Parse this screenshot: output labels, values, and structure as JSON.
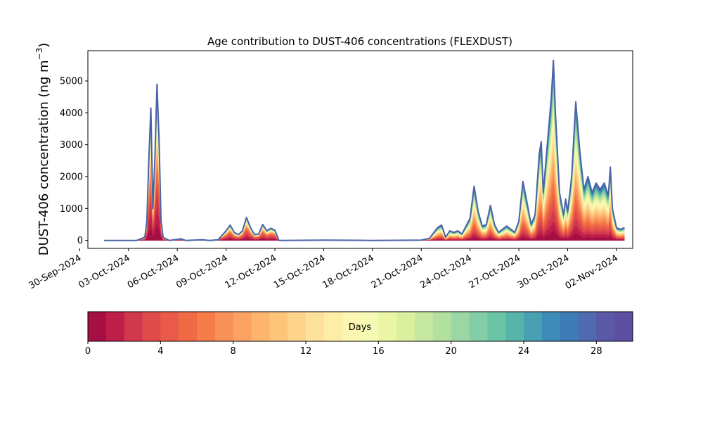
{
  "chart_data": {
    "type": "area",
    "title": "Age contribution to DUST-406 concentrations (FLEXDUST)",
    "ylabel": "DUST-406 concentration (ng m",
    "ylabel_superscript": "−3",
    "ylabel_close": ")",
    "xlabel": "",
    "ylim": [
      -250,
      5950
    ],
    "xlim": [
      "2024-09-30T12:00",
      "2024-11-03T00:00"
    ],
    "y_ticks": [
      0,
      1000,
      2000,
      3000,
      4000,
      5000
    ],
    "x_ticks": [
      "30-Sep-2024",
      "03-Oct-2024",
      "06-Oct-2024",
      "09-Oct-2024",
      "12-Oct-2024",
      "15-Oct-2024",
      "18-Oct-2024",
      "21-Oct-2024",
      "24-Oct-2024",
      "27-Oct-2024",
      "30-Oct-2024",
      "02-Nov-2024"
    ],
    "x_tick_dates": [
      "2024-09-30",
      "2024-10-03",
      "2024-10-06",
      "2024-10-09",
      "2024-10-12",
      "2024-10-15",
      "2024-10-18",
      "2024-10-21",
      "2024-10-24",
      "2024-10-27",
      "2024-10-30",
      "2024-11-02"
    ],
    "grid": false,
    "total_line_color": "#4a62a8",
    "total_concentration": [
      [
        "2024-10-01T12:00",
        0
      ],
      [
        "2024-10-02T12:00",
        0
      ],
      [
        "2024-10-03T12:00",
        0
      ],
      [
        "2024-10-04T00:00",
        100
      ],
      [
        "2024-10-04T03:00",
        600
      ],
      [
        "2024-10-04T06:00",
        2600
      ],
      [
        "2024-10-04T09:00",
        4150
      ],
      [
        "2024-10-04T12:00",
        1000
      ],
      [
        "2024-10-04T15:00",
        2600
      ],
      [
        "2024-10-04T18:00",
        4900
      ],
      [
        "2024-10-04T21:00",
        3200
      ],
      [
        "2024-10-05T00:00",
        600
      ],
      [
        "2024-10-05T03:00",
        100
      ],
      [
        "2024-10-05T12:00",
        0
      ],
      [
        "2024-10-06T06:00",
        50
      ],
      [
        "2024-10-06T12:00",
        0
      ],
      [
        "2024-10-07T12:00",
        20
      ],
      [
        "2024-10-08T00:00",
        0
      ],
      [
        "2024-10-08T12:00",
        20
      ],
      [
        "2024-10-09T00:00",
        300
      ],
      [
        "2024-10-09T06:00",
        480
      ],
      [
        "2024-10-09T12:00",
        250
      ],
      [
        "2024-10-09T18:00",
        180
      ],
      [
        "2024-10-10T00:00",
        300
      ],
      [
        "2024-10-10T06:00",
        720
      ],
      [
        "2024-10-10T12:00",
        400
      ],
      [
        "2024-10-10T18:00",
        180
      ],
      [
        "2024-10-11T00:00",
        200
      ],
      [
        "2024-10-11T06:00",
        500
      ],
      [
        "2024-10-11T12:00",
        300
      ],
      [
        "2024-10-11T18:00",
        380
      ],
      [
        "2024-10-12T00:00",
        320
      ],
      [
        "2024-10-12T06:00",
        0
      ],
      [
        "2024-10-15T00:00",
        10
      ],
      [
        "2024-10-18T00:00",
        0
      ],
      [
        "2024-10-21T00:00",
        10
      ],
      [
        "2024-10-21T12:00",
        60
      ],
      [
        "2024-10-22T00:00",
        400
      ],
      [
        "2024-10-22T06:00",
        480
      ],
      [
        "2024-10-22T12:00",
        100
      ],
      [
        "2024-10-22T18:00",
        300
      ],
      [
        "2024-10-23T00:00",
        250
      ],
      [
        "2024-10-23T06:00",
        300
      ],
      [
        "2024-10-23T12:00",
        200
      ],
      [
        "2024-10-24T00:00",
        700
      ],
      [
        "2024-10-24T06:00",
        1700
      ],
      [
        "2024-10-24T12:00",
        900
      ],
      [
        "2024-10-24T18:00",
        450
      ],
      [
        "2024-10-25T00:00",
        500
      ],
      [
        "2024-10-25T06:00",
        1100
      ],
      [
        "2024-10-25T12:00",
        500
      ],
      [
        "2024-10-25T18:00",
        250
      ],
      [
        "2024-10-26T00:00",
        350
      ],
      [
        "2024-10-26T06:00",
        450
      ],
      [
        "2024-10-26T12:00",
        350
      ],
      [
        "2024-10-26T18:00",
        250
      ],
      [
        "2024-10-27T00:00",
        600
      ],
      [
        "2024-10-27T06:00",
        1850
      ],
      [
        "2024-10-27T12:00",
        1200
      ],
      [
        "2024-10-27T18:00",
        500
      ],
      [
        "2024-10-28T00:00",
        800
      ],
      [
        "2024-10-28T06:00",
        2700
      ],
      [
        "2024-10-28T09:00",
        3100
      ],
      [
        "2024-10-28T12:00",
        1500
      ],
      [
        "2024-10-28T18:00",
        3000
      ],
      [
        "2024-10-29T00:00",
        4500
      ],
      [
        "2024-10-29T03:00",
        5650
      ],
      [
        "2024-10-29T06:00",
        4000
      ],
      [
        "2024-10-29T12:00",
        1500
      ],
      [
        "2024-10-29T18:00",
        800
      ],
      [
        "2024-10-29T21:00",
        1300
      ],
      [
        "2024-10-30T00:00",
        900
      ],
      [
        "2024-10-30T06:00",
        2000
      ],
      [
        "2024-10-30T12:00",
        4350
      ],
      [
        "2024-10-30T18:00",
        2800
      ],
      [
        "2024-10-31T00:00",
        1600
      ],
      [
        "2024-10-31T06:00",
        2000
      ],
      [
        "2024-10-31T12:00",
        1500
      ],
      [
        "2024-10-31T18:00",
        1800
      ],
      [
        "2024-11-01T00:00",
        1600
      ],
      [
        "2024-11-01T06:00",
        1800
      ],
      [
        "2024-11-01T12:00",
        1400
      ],
      [
        "2024-11-01T15:00",
        2300
      ],
      [
        "2024-11-01T18:00",
        1000
      ],
      [
        "2024-11-02T00:00",
        400
      ],
      [
        "2024-11-02T06:00",
        350
      ],
      [
        "2024-11-02T12:00",
        400
      ]
    ]
  },
  "colorbar": {
    "label": "Days",
    "range": [
      0,
      30
    ],
    "ticks": [
      0,
      4,
      8,
      12,
      16,
      20,
      24,
      28
    ],
    "colors": [
      "#a50f44",
      "#be1e48",
      "#d0384e",
      "#df4a4b",
      "#ea5a48",
      "#ef6a45",
      "#f67c4a",
      "#f9915a",
      "#fca262",
      "#fdb56d",
      "#fdc57a",
      "#fdd48a",
      "#fee19a",
      "#feeda7",
      "#fdf5b2",
      "#f6fab4",
      "#eaf6a3",
      "#daf09e",
      "#c7e8a0",
      "#b2e09e",
      "#9bd7a4",
      "#83cea6",
      "#6bc4a6",
      "#56b4aa",
      "#4aa0b3",
      "#3f8bb8",
      "#3c7bb6",
      "#4f6aae",
      "#5b59a6",
      "#5e4fa2"
    ]
  }
}
